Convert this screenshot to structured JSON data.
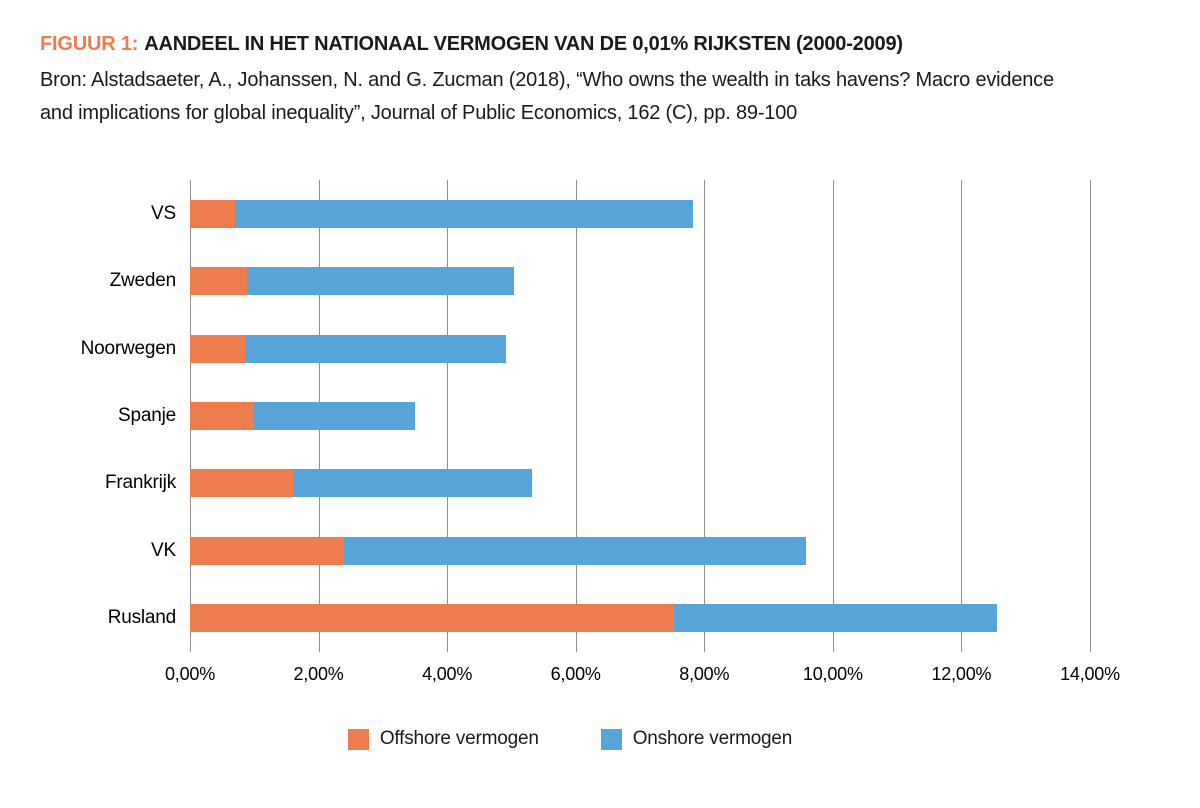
{
  "figure": {
    "label": "FIGUUR 1:",
    "title": "AANDEEL IN HET NATIONAAL VERMOGEN VAN DE 0,01% RIJKSTEN (2000-2009)",
    "source_line1": "Bron: Alstadsaeter, A., Johanssen, N. and G. Zucman (2018), “Who owns the wealth in taks havens? Macro evidence",
    "source_line2": "and implications for global inequality”, Journal of Public Economics, 162 (C), pp. 89-100"
  },
  "chart_data": {
    "type": "bar",
    "orientation": "horizontal",
    "stacked": true,
    "title": "AANDEEL IN HET NATIONAAL VERMOGEN VAN DE 0,01% RIJKSTEN (2000-2009)",
    "categories": [
      "VS",
      "Zweden",
      "Noorwegen",
      "Spanje",
      "Frankrijk",
      "VK",
      "Rusland"
    ],
    "series": [
      {
        "name": "Offshore vermogen",
        "color": "#ed7d4e",
        "values": [
          0.7,
          0.88,
          0.87,
          1.0,
          1.6,
          2.4,
          7.53
        ]
      },
      {
        "name": "Onshore vermogen",
        "color": "#57a4d8",
        "values": [
          7.13,
          4.16,
          4.05,
          2.5,
          3.72,
          7.18,
          5.03
        ]
      }
    ],
    "bar_totals": [
      7.83,
      5.04,
      4.92,
      3.5,
      5.32,
      9.58,
      12.56
    ],
    "xlabel": "",
    "ylabel": "",
    "xlim": [
      0,
      14
    ],
    "x_tick_labels": [
      "0,00%",
      "2,00%",
      "4,00%",
      "6,00%",
      "8,00%",
      "10,00%",
      "12,00%",
      "14,00%"
    ],
    "x_tick_values": [
      0,
      2,
      4,
      6,
      8,
      10,
      12,
      14
    ],
    "grid": "vertical",
    "legend_position": "bottom"
  },
  "colors": {
    "accent_orange": "#ed7d4e",
    "bar_blue": "#57a4d8",
    "gridline": "#909090",
    "text": "#1a1a1a",
    "background": "#ffffff"
  }
}
